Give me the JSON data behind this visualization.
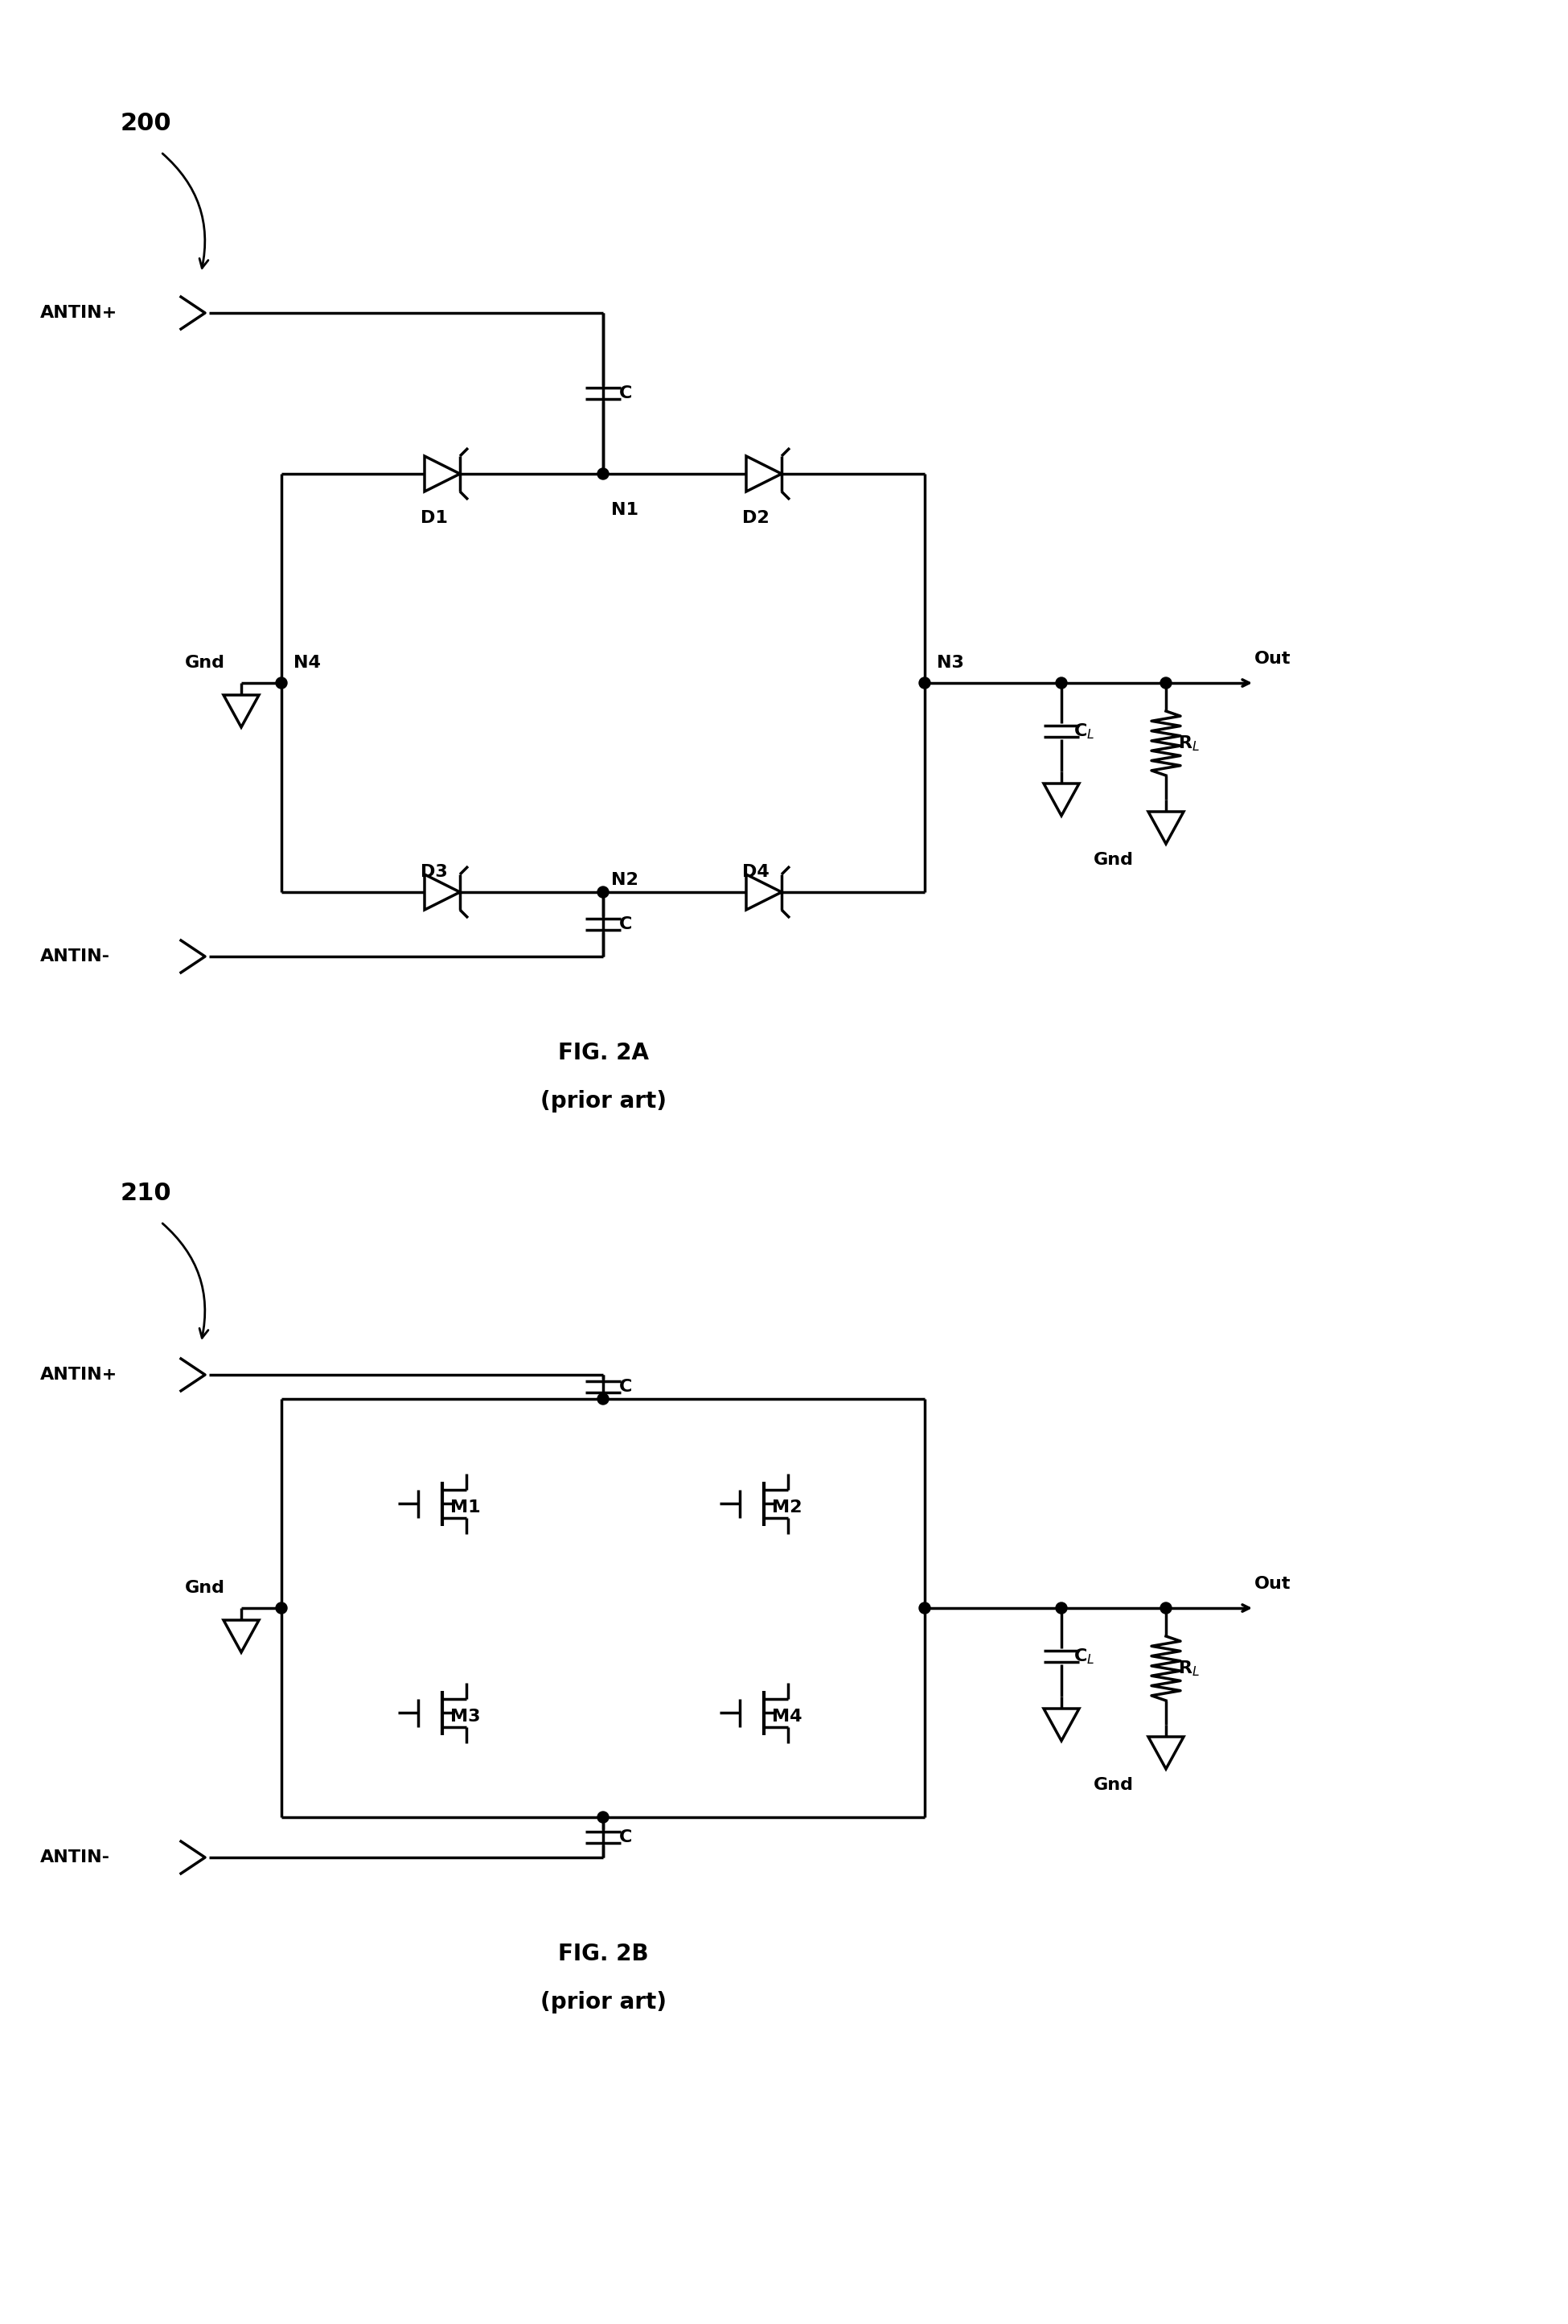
{
  "fig_width": 19.5,
  "fig_height": 28.89,
  "bg_color": "#ffffff",
  "line_color": "#000000",
  "line_width": 2.5,
  "title_2a": "FIG. 2A",
  "subtitle_2a": "(prior art)",
  "title_2b": "FIG. 2B",
  "subtitle_2b": "(prior art)",
  "label_200": "200",
  "label_210": "210"
}
